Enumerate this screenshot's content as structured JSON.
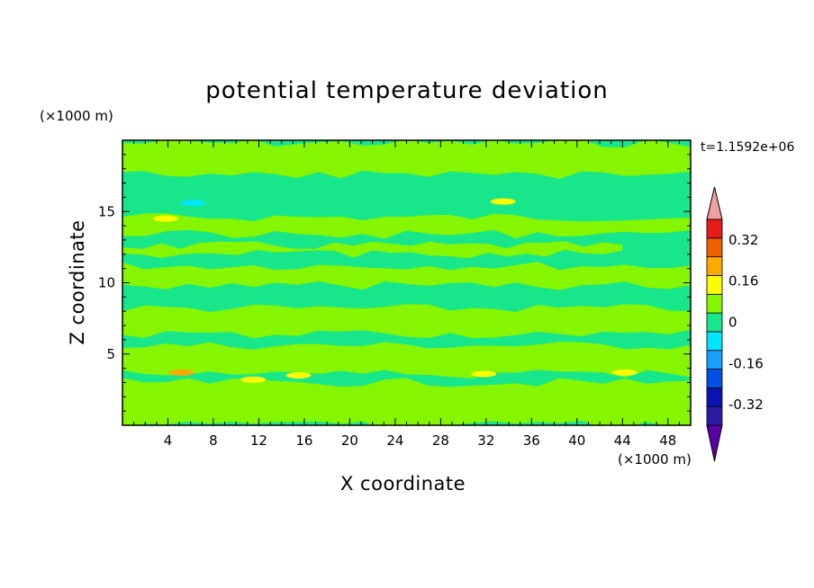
{
  "chart_data": {
    "type": "heatmap",
    "title": "potential temperature deviation",
    "xlabel": "X coordinate",
    "ylabel": "Z coordinate",
    "x_unit": "(×1000 m)",
    "z_unit": "(×1000 m)",
    "time_label": "t=1.1592e+06",
    "xlim": [
      0,
      50
    ],
    "ylim": [
      0,
      20
    ],
    "x_ticks": [
      4,
      8,
      12,
      16,
      20,
      24,
      28,
      32,
      36,
      40,
      44,
      48
    ],
    "y_ticks": [
      5,
      10,
      15
    ],
    "colorbar": {
      "levels": [
        -0.48,
        -0.4,
        -0.32,
        -0.24,
        -0.16,
        -0.08,
        0,
        0.08,
        0.16,
        0.24,
        0.32,
        0.4,
        0.48
      ],
      "labels": [
        "-0.32",
        "-0.16",
        "0",
        "0.16",
        "0.32"
      ],
      "label_values": [
        -0.32,
        -0.16,
        0,
        0.16,
        0.32
      ],
      "colors": [
        "#5a00a6",
        "#2a1aa6",
        "#0a14b4",
        "#0050e6",
        "#18a0ff",
        "#00e6ff",
        "#18e68a",
        "#86f500",
        "#fdfd00",
        "#fdaa00",
        "#f06000",
        "#e81a1a",
        "#f0a0a0"
      ]
    },
    "background_level": "-0.08 to 0 (green)",
    "bands": [
      {
        "x": [
          0,
          50
        ],
        "z": [
          17.6,
          19.8
        ],
        "level": "0 to 0.08"
      },
      {
        "x": [
          0,
          50
        ],
        "z": [
          13.4,
          14.6
        ],
        "level": "0 to 0.08"
      },
      {
        "x": [
          0,
          44
        ],
        "z": [
          12.0,
          12.6
        ],
        "level": "0 to 0.08"
      },
      {
        "x": [
          0,
          50
        ],
        "z": [
          9.8,
          11.2
        ],
        "level": "0 to 0.08"
      },
      {
        "x": [
          0,
          50
        ],
        "z": [
          6.4,
          8.2
        ],
        "level": "0 to 0.08"
      },
      {
        "x": [
          0,
          50
        ],
        "z": [
          3.6,
          5.6
        ],
        "level": "0 to 0.08"
      },
      {
        "x": [
          0,
          50
        ],
        "z": [
          0,
          3.0
        ],
        "level": "0 to 0.08"
      }
    ],
    "hotspots": [
      {
        "x": 3.8,
        "z": 14.5,
        "level": "0.16 to 0.24"
      },
      {
        "x": 33.5,
        "z": 15.7,
        "level": "0.16 to 0.24"
      },
      {
        "x": 5.2,
        "z": 3.7,
        "level": "0.24 to 0.32"
      },
      {
        "x": 11.5,
        "z": 3.2,
        "level": "0.16 to 0.24"
      },
      {
        "x": 15.5,
        "z": 3.5,
        "level": "0.16 to 0.24"
      },
      {
        "x": 31.8,
        "z": 3.6,
        "level": "0.16 to 0.24"
      },
      {
        "x": 44.2,
        "z": 3.7,
        "level": "0.16 to 0.24"
      },
      {
        "x": 6.2,
        "z": 15.6,
        "level": "-0.16 to -0.08"
      }
    ]
  }
}
